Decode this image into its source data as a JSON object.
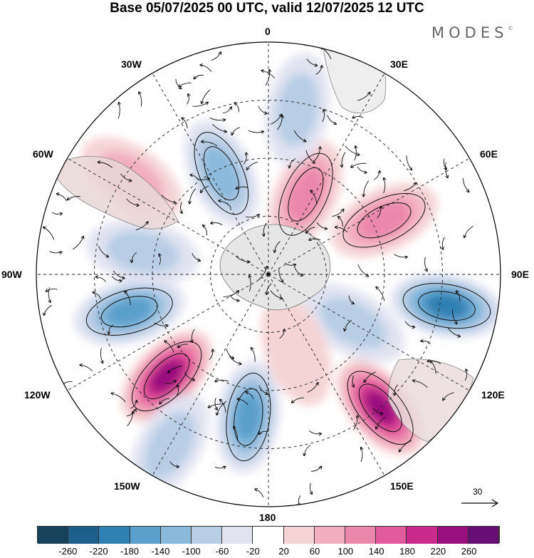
{
  "title": "Base 05/07/2025 00 UTC, valid 12/07/2025 12 UTC",
  "logo": "MODES",
  "logo_mark": "©",
  "longitude_labels": {
    "top": "0",
    "bottom": "180",
    "left": "90W",
    "right": "90E",
    "upper_left_1": "30W",
    "upper_left_2": "60W",
    "upper_right_1": "30E",
    "upper_right_2": "60E",
    "lower_left_1": "120W",
    "lower_left_2": "150W",
    "lower_right_1": "120E",
    "lower_right_2": "150E"
  },
  "reference_vector": {
    "label": "30"
  },
  "colorbar": {
    "colors": [
      "#16425b",
      "#1e5f8c",
      "#2e7fb2",
      "#5aa0cc",
      "#8ab9dc",
      "#b8cde6",
      "#e1e3f0",
      "#ffffff",
      "#f6d4d6",
      "#f2afc0",
      "#ec87ac",
      "#e35b9c",
      "#c92a8c",
      "#9a0e7d",
      "#660e74"
    ],
    "tick_labels": [
      "-260",
      "-220",
      "-180",
      "-140",
      "-100",
      "-60",
      "-20",
      "20",
      "60",
      "100",
      "140",
      "180",
      "220",
      "260"
    ]
  },
  "anomaly_centers": [
    {
      "lon": -172,
      "colat": 0.62,
      "value": -170
    },
    {
      "lon": 25,
      "colat": 0.38,
      "value": 110
    },
    {
      "lon": -55,
      "colat": 0.72,
      "value": 90
    },
    {
      "lon": -105,
      "colat": 0.62,
      "value": -160
    },
    {
      "lon": -135,
      "colat": 0.62,
      "value": 230
    },
    {
      "lon": 100,
      "colat": 0.78,
      "value": -210
    },
    {
      "lon": 140,
      "colat": 0.75,
      "value": 250
    },
    {
      "lon": 65,
      "colat": 0.55,
      "value": 120
    },
    {
      "lon": -25,
      "colat": 0.48,
      "value": -130
    },
    {
      "lon": 10,
      "colat": 0.72,
      "value": -70
    },
    {
      "lon": -150,
      "colat": 0.85,
      "value": -90
    },
    {
      "lon": -80,
      "colat": 0.55,
      "value": -60
    },
    {
      "lon": 120,
      "colat": 0.42,
      "value": -60
    },
    {
      "lon": 160,
      "colat": 0.35,
      "value": 40
    }
  ]
}
